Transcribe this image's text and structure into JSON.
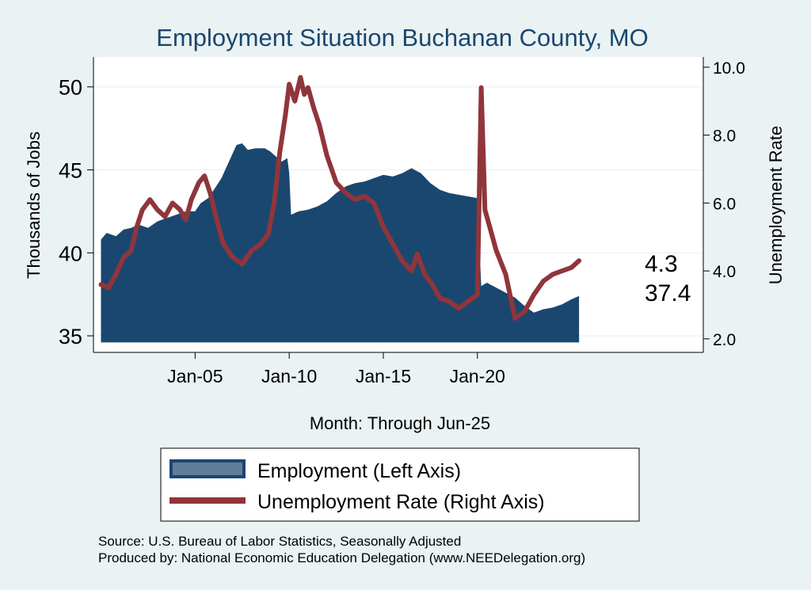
{
  "chart_data": {
    "type": "area",
    "title": "Employment Situation Buchanan  County, MO",
    "xlabel": "Month: Through Jun-25",
    "ylabel_left": "Thousands of Jobs",
    "ylabel_right": "Unemployment Rate",
    "x_ticks": [
      {
        "label": "Jan-05",
        "value": 2005.0
      },
      {
        "label": "Jan-10",
        "value": 2010.0
      },
      {
        "label": "Jan-15",
        "value": 2015.0
      },
      {
        "label": "Jan-20",
        "value": 2020.0
      }
    ],
    "xlim": [
      1999.6,
      2032.0
    ],
    "y_left": {
      "ticks": [
        35,
        40,
        45,
        50
      ],
      "tick_labels": [
        "35",
        "40",
        "45",
        "50"
      ],
      "range": [
        34.0,
        51.8
      ]
    },
    "y_right": {
      "ticks": [
        2,
        4,
        6,
        8,
        10
      ],
      "tick_labels": [
        "2.0",
        "4.0",
        "6.0",
        "8.0",
        "10.0"
      ],
      "range": [
        1.6,
        10.3
      ]
    },
    "grid": true,
    "series": [
      {
        "name": "Employment (Left Axis)",
        "axis": "left",
        "type": "area",
        "color": "#1a476f",
        "baseline": 34.6,
        "points": [
          [
            2000.0,
            40.8
          ],
          [
            2000.3,
            41.2
          ],
          [
            2000.8,
            41.0
          ],
          [
            2001.2,
            41.4
          ],
          [
            2001.6,
            41.5
          ],
          [
            2002.0,
            41.7
          ],
          [
            2002.5,
            41.5
          ],
          [
            2003.0,
            41.9
          ],
          [
            2003.5,
            42.1
          ],
          [
            2004.0,
            42.3
          ],
          [
            2004.5,
            42.5
          ],
          [
            2005.0,
            42.5
          ],
          [
            2005.3,
            43.0
          ],
          [
            2005.7,
            43.3
          ],
          [
            2006.0,
            43.8
          ],
          [
            2006.4,
            44.5
          ],
          [
            2006.8,
            45.5
          ],
          [
            2007.2,
            46.5
          ],
          [
            2007.5,
            46.6
          ],
          [
            2007.8,
            46.2
          ],
          [
            2008.2,
            46.3
          ],
          [
            2008.7,
            46.3
          ],
          [
            2009.0,
            46.1
          ],
          [
            2009.3,
            45.8
          ],
          [
            2009.6,
            45.5
          ],
          [
            2009.9,
            45.7
          ],
          [
            2010.0,
            44.8
          ],
          [
            2010.1,
            42.3
          ],
          [
            2010.5,
            42.5
          ],
          [
            2011.0,
            42.6
          ],
          [
            2011.5,
            42.8
          ],
          [
            2012.0,
            43.1
          ],
          [
            2012.5,
            43.6
          ],
          [
            2013.0,
            44.0
          ],
          [
            2013.5,
            44.2
          ],
          [
            2014.0,
            44.3
          ],
          [
            2014.5,
            44.5
          ],
          [
            2015.0,
            44.7
          ],
          [
            2015.5,
            44.6
          ],
          [
            2016.0,
            44.8
          ],
          [
            2016.5,
            45.1
          ],
          [
            2017.0,
            44.8
          ],
          [
            2017.5,
            44.2
          ],
          [
            2018.0,
            43.8
          ],
          [
            2018.5,
            43.6
          ],
          [
            2019.0,
            43.5
          ],
          [
            2019.5,
            43.4
          ],
          [
            2020.0,
            43.3
          ],
          [
            2020.2,
            38.0
          ],
          [
            2020.5,
            38.2
          ],
          [
            2021.0,
            37.9
          ],
          [
            2021.5,
            37.6
          ],
          [
            2022.0,
            37.3
          ],
          [
            2022.5,
            36.8
          ],
          [
            2023.0,
            36.4
          ],
          [
            2023.5,
            36.6
          ],
          [
            2024.0,
            36.7
          ],
          [
            2024.5,
            36.9
          ],
          [
            2025.0,
            37.2
          ],
          [
            2025.4,
            37.4
          ]
        ]
      },
      {
        "name": "Unemployment Rate (Right Axis)",
        "axis": "right",
        "type": "line",
        "color": "#90353b",
        "points": [
          [
            2000.0,
            3.6
          ],
          [
            2000.4,
            3.5
          ],
          [
            2000.8,
            3.9
          ],
          [
            2001.2,
            4.4
          ],
          [
            2001.6,
            4.6
          ],
          [
            2001.9,
            5.3
          ],
          [
            2002.2,
            5.8
          ],
          [
            2002.6,
            6.1
          ],
          [
            2003.0,
            5.8
          ],
          [
            2003.4,
            5.6
          ],
          [
            2003.8,
            6.0
          ],
          [
            2004.2,
            5.8
          ],
          [
            2004.5,
            5.5
          ],
          [
            2004.8,
            6.1
          ],
          [
            2005.2,
            6.6
          ],
          [
            2005.5,
            6.8
          ],
          [
            2005.8,
            6.3
          ],
          [
            2006.2,
            5.4
          ],
          [
            2006.5,
            4.8
          ],
          [
            2007.0,
            4.4
          ],
          [
            2007.5,
            4.2
          ],
          [
            2008.0,
            4.6
          ],
          [
            2008.5,
            4.8
          ],
          [
            2008.9,
            5.1
          ],
          [
            2009.2,
            6.0
          ],
          [
            2009.5,
            7.5
          ],
          [
            2009.8,
            8.6
          ],
          [
            2010.0,
            9.5
          ],
          [
            2010.3,
            9.0
          ],
          [
            2010.6,
            9.7
          ],
          [
            2010.8,
            9.2
          ],
          [
            2011.0,
            9.4
          ],
          [
            2011.3,
            8.8
          ],
          [
            2011.6,
            8.3
          ],
          [
            2012.0,
            7.4
          ],
          [
            2012.5,
            6.6
          ],
          [
            2013.0,
            6.3
          ],
          [
            2013.5,
            6.1
          ],
          [
            2014.0,
            6.2
          ],
          [
            2014.5,
            6.0
          ],
          [
            2015.0,
            5.3
          ],
          [
            2015.5,
            4.8
          ],
          [
            2016.0,
            4.3
          ],
          [
            2016.5,
            4.0
          ],
          [
            2016.8,
            4.5
          ],
          [
            2017.2,
            3.9
          ],
          [
            2017.6,
            3.6
          ],
          [
            2018.0,
            3.2
          ],
          [
            2018.5,
            3.1
          ],
          [
            2019.0,
            2.9
          ],
          [
            2019.5,
            3.1
          ],
          [
            2020.0,
            3.3
          ],
          [
            2020.2,
            9.4
          ],
          [
            2020.4,
            5.8
          ],
          [
            2020.7,
            5.2
          ],
          [
            2021.0,
            4.6
          ],
          [
            2021.5,
            3.9
          ],
          [
            2022.0,
            2.6
          ],
          [
            2022.5,
            2.8
          ],
          [
            2023.0,
            3.3
          ],
          [
            2023.5,
            3.7
          ],
          [
            2024.0,
            3.9
          ],
          [
            2024.5,
            4.0
          ],
          [
            2025.0,
            4.1
          ],
          [
            2025.4,
            4.3
          ]
        ]
      }
    ],
    "end_labels": {
      "unemployment": "4.3",
      "employment": "37.4"
    },
    "legend": {
      "placement": "bottom-center",
      "entries": [
        {
          "label": "Employment (Left Axis)",
          "color": "#1a476f",
          "kind": "box"
        },
        {
          "label": "Unemployment Rate (Right Axis)",
          "color": "#90353b",
          "kind": "line"
        }
      ]
    },
    "notes": [
      "Source: U.S. Bureau of Labor Statistics, Seasonally Adjusted",
      "Produced by: National Economic Education Delegation (www.NEEDelegation.org)"
    ]
  }
}
